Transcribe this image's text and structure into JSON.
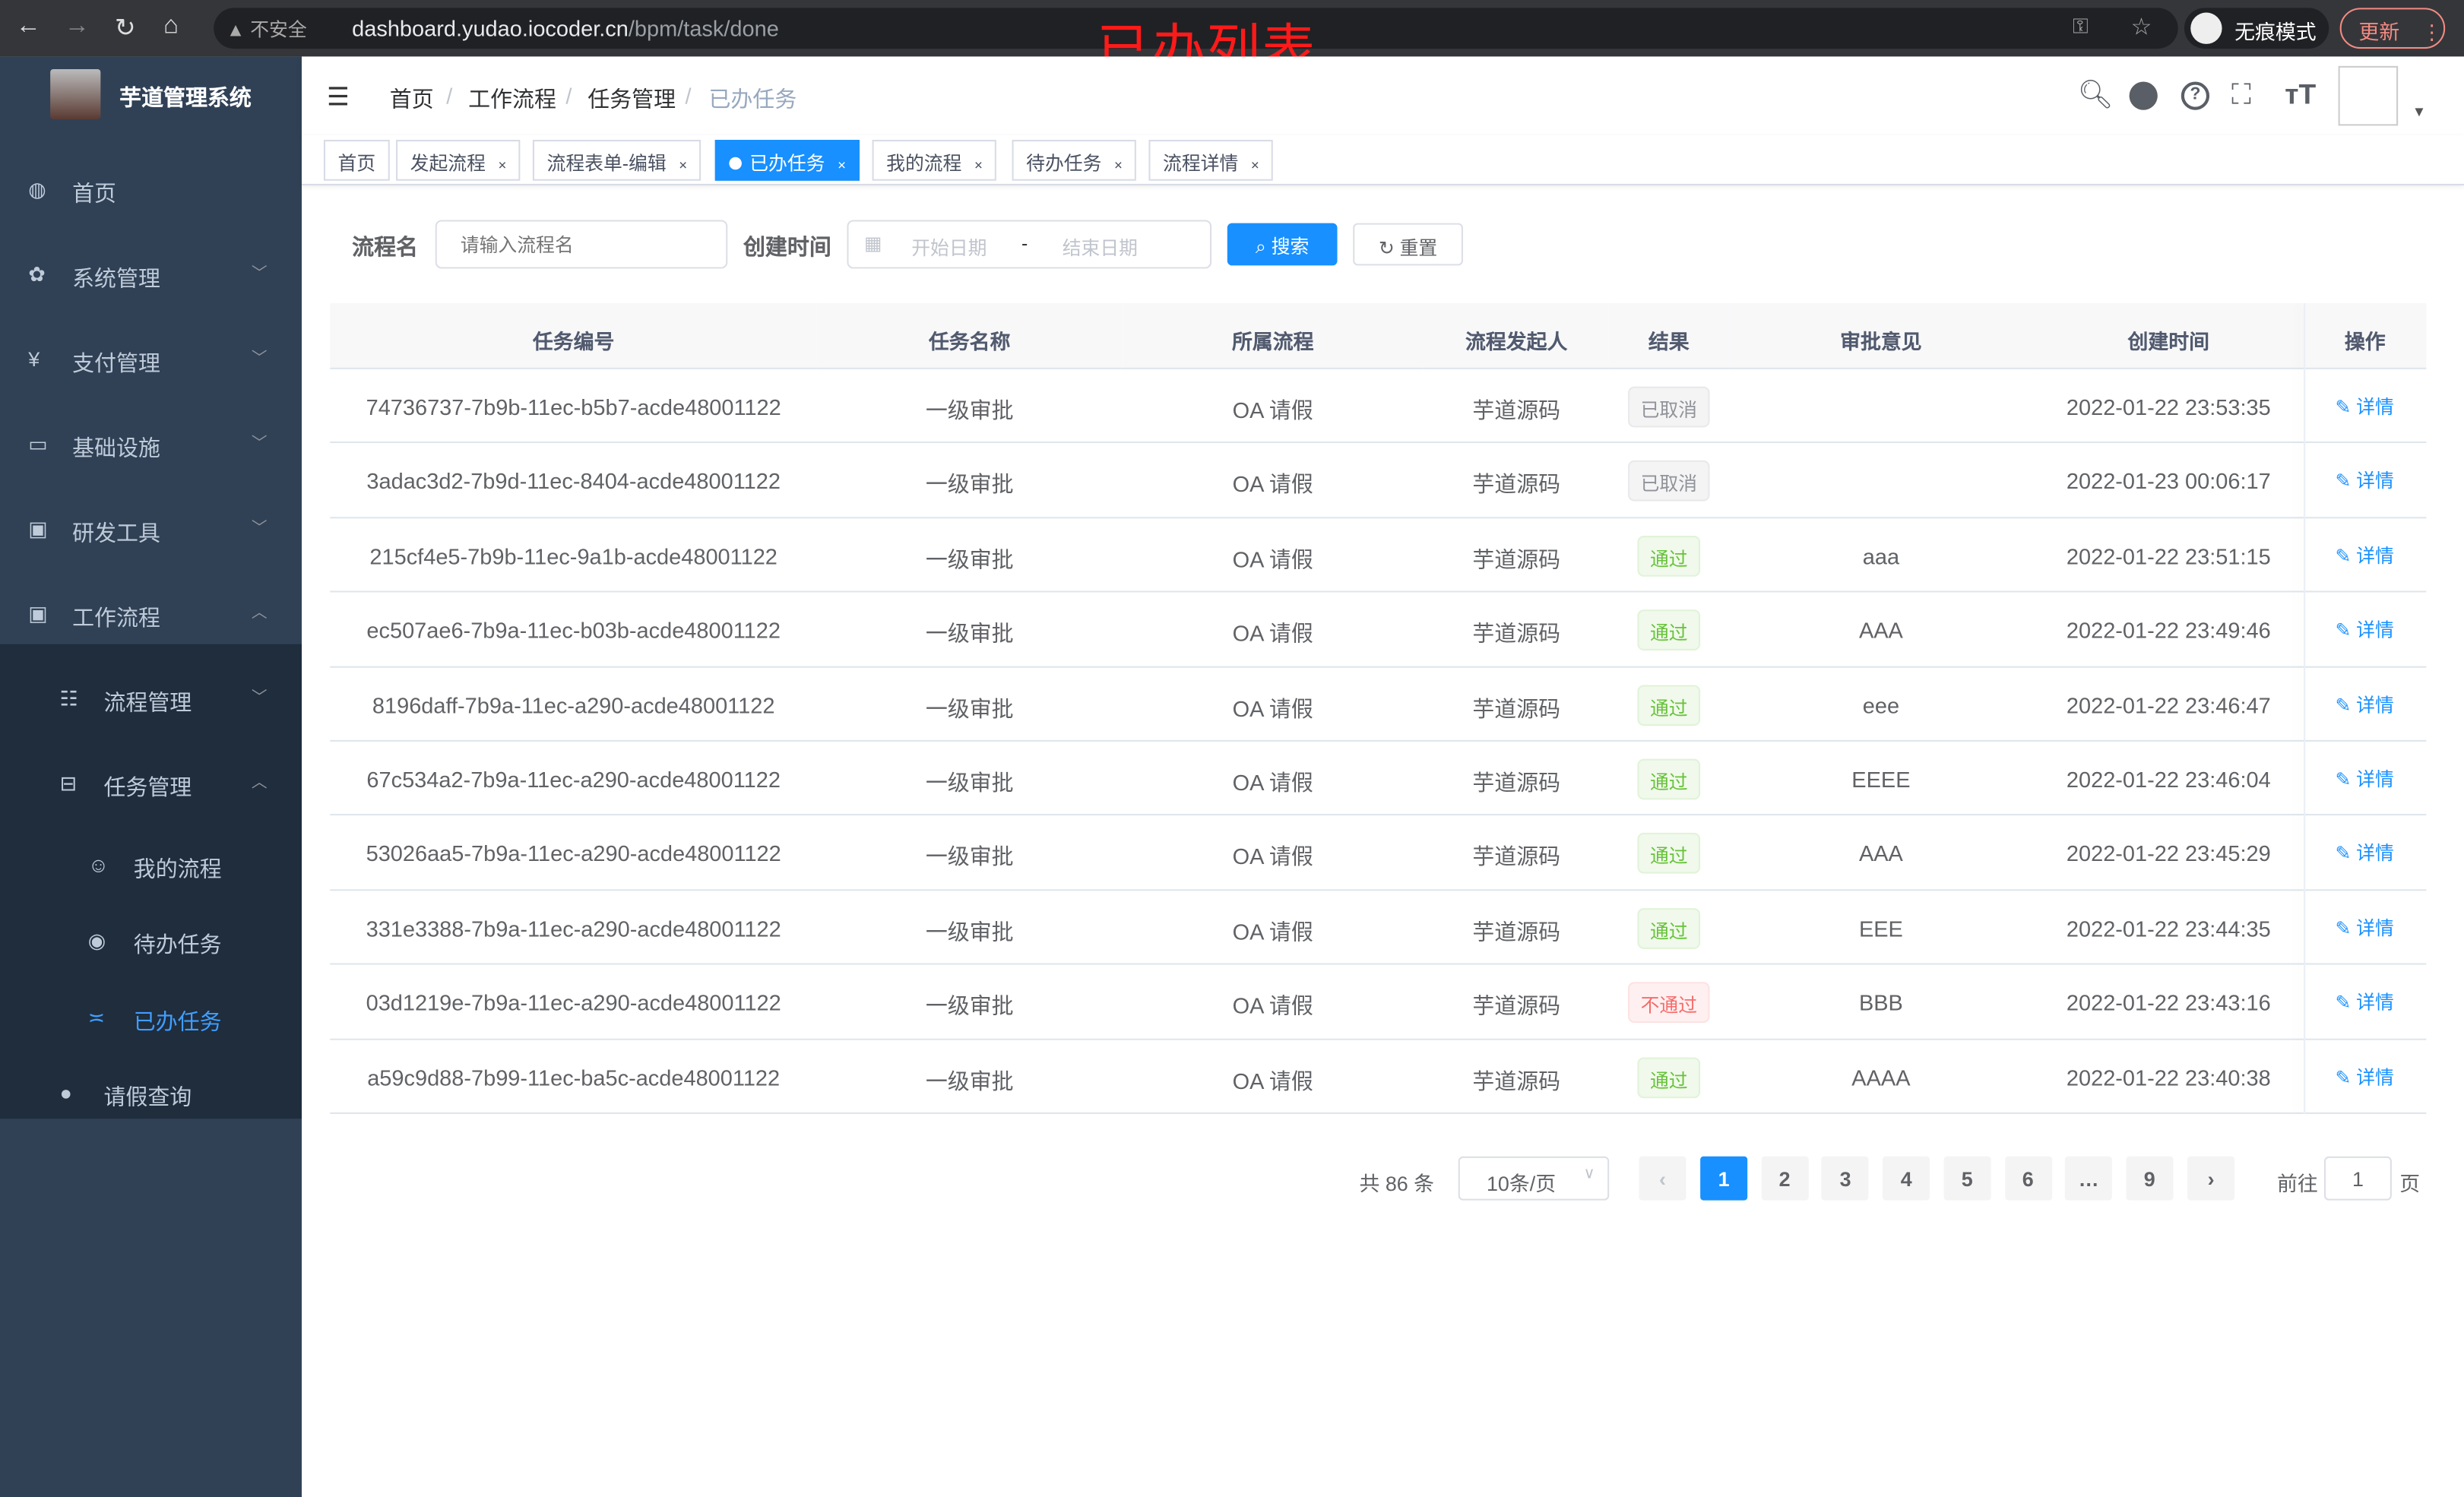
{
  "browser": {
    "security": "不安全",
    "url_host": "dashboard.yudao.iocoder.cn",
    "url_path": "/bpm/task/done",
    "incognito": "无痕模式",
    "update": "更新"
  },
  "annotation": "已办列表",
  "sidebar": {
    "title": "芋道管理系统",
    "items": [
      {
        "label": "首页",
        "icon": "dashboard-icon",
        "level": 0
      },
      {
        "label": "系统管理",
        "icon": "gear-icon",
        "level": 0,
        "chevron": "down"
      },
      {
        "label": "支付管理",
        "icon": "yen-icon",
        "level": 0,
        "chevron": "down"
      },
      {
        "label": "基础设施",
        "icon": "monitor-icon",
        "level": 0,
        "chevron": "down"
      },
      {
        "label": "研发工具",
        "icon": "toolbox-icon",
        "level": 0,
        "chevron": "down"
      },
      {
        "label": "工作流程",
        "icon": "toolbox-icon",
        "level": 0,
        "chevron": "up"
      },
      {
        "label": "流程管理",
        "icon": "list-icon",
        "level": 1,
        "chevron": "down"
      },
      {
        "label": "任务管理",
        "icon": "tree-icon",
        "level": 1,
        "chevron": "up"
      },
      {
        "label": "我的流程",
        "icon": "user-icon",
        "level": 2
      },
      {
        "label": "待办任务",
        "icon": "eye-icon",
        "level": 2
      },
      {
        "label": "已办任务",
        "icon": "checkmark-icon",
        "level": 2,
        "active": true
      },
      {
        "label": "请假查询",
        "icon": "person-icon",
        "level": 1
      }
    ]
  },
  "navbar": {
    "breadcrumb": [
      "首页",
      "工作流程",
      "任务管理",
      "已办任务"
    ]
  },
  "tags": [
    {
      "label": "首页"
    },
    {
      "label": "发起流程",
      "close": "×"
    },
    {
      "label": "流程表单-编辑",
      "close": "×"
    },
    {
      "label": "已办任务",
      "close": "×",
      "active": true
    },
    {
      "label": "我的流程",
      "close": "×"
    },
    {
      "label": "待办任务",
      "close": "×"
    },
    {
      "label": "流程详情",
      "close": "×"
    }
  ],
  "search": {
    "name_label": "流程名",
    "name_placeholder": "请输入流程名",
    "time_label": "创建时间",
    "start_placeholder": "开始日期",
    "range_sep": "-",
    "end_placeholder": "结束日期",
    "search_btn": "搜索",
    "reset_btn": "重置"
  },
  "table": {
    "headers": [
      "任务编号",
      "任务名称",
      "所属流程",
      "流程发起人",
      "结果",
      "审批意见",
      "创建时间",
      "操作"
    ],
    "op_label": "详情",
    "rows": [
      [
        "74736737-7b9b-11ec-b5b7-acde48001122",
        "一级审批",
        "OA 请假",
        "芋道源码",
        "已取消",
        "",
        "2022-01-22 23:53:35"
      ],
      [
        "3adac3d2-7b9d-11ec-8404-acde48001122",
        "一级审批",
        "OA 请假",
        "芋道源码",
        "已取消",
        "",
        "2022-01-23 00:06:17"
      ],
      [
        "215cf4e5-7b9b-11ec-9a1b-acde48001122",
        "一级审批",
        "OA 请假",
        "芋道源码",
        "通过",
        "aaa",
        "2022-01-22 23:51:15"
      ],
      [
        "ec507ae6-7b9a-11ec-b03b-acde48001122",
        "一级审批",
        "OA 请假",
        "芋道源码",
        "通过",
        "AAA",
        "2022-01-22 23:49:46"
      ],
      [
        "8196daff-7b9a-11ec-a290-acde48001122",
        "一级审批",
        "OA 请假",
        "芋道源码",
        "通过",
        "eee",
        "2022-01-22 23:46:47"
      ],
      [
        "67c534a2-7b9a-11ec-a290-acde48001122",
        "一级审批",
        "OA 请假",
        "芋道源码",
        "通过",
        "EEEE",
        "2022-01-22 23:46:04"
      ],
      [
        "53026aa5-7b9a-11ec-a290-acde48001122",
        "一级审批",
        "OA 请假",
        "芋道源码",
        "通过",
        "AAA",
        "2022-01-22 23:45:29"
      ],
      [
        "331e3388-7b9a-11ec-a290-acde48001122",
        "一级审批",
        "OA 请假",
        "芋道源码",
        "通过",
        "EEE",
        "2022-01-22 23:44:35"
      ],
      [
        "03d1219e-7b9a-11ec-a290-acde48001122",
        "一级审批",
        "OA 请假",
        "芋道源码",
        "不通过",
        "BBB",
        "2022-01-22 23:43:16"
      ],
      [
        "a59c9d88-7b99-11ec-ba5c-acde48001122",
        "一级审批",
        "OA 请假",
        "芋道源码",
        "通过",
        "AAAA",
        "2022-01-22 23:40:38"
      ]
    ]
  },
  "pagination": {
    "total": "共 86 条",
    "page_size": "10条/页",
    "pages": [
      "1",
      "2",
      "3",
      "4",
      "5",
      "6",
      "…",
      "9"
    ],
    "current": "1",
    "goto_label": "前往",
    "goto_value": "1",
    "page_suffix": "页"
  },
  "colors": {
    "primary": "#1890ff",
    "sidebar": "#304156",
    "pass": "#67c23a",
    "fail": "#f56c6c"
  }
}
